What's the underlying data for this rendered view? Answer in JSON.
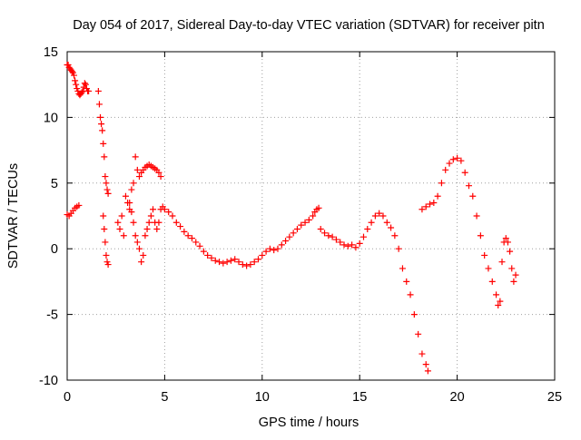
{
  "chart_data": {
    "type": "scatter",
    "title": "Day 054 of 2017, Sidereal Day-to-day VTEC variation (SDTVAR) for receiver pitn",
    "xlabel": "GPS time / hours",
    "ylabel": "SDTVAR / TECUs",
    "xlim": [
      0,
      25
    ],
    "ylim": [
      -10,
      15
    ],
    "x_ticks": [
      0,
      5,
      10,
      15,
      20,
      25
    ],
    "y_ticks": [
      -10,
      -5,
      0,
      5,
      10,
      15
    ],
    "grid": true,
    "marker": "+",
    "marker_color": "#ff0000",
    "series": [
      {
        "name": "SDTVAR",
        "x": [
          0.0,
          0.05,
          0.1,
          0.15,
          0.2,
          0.25,
          0.3,
          0.35,
          0.4,
          0.45,
          0.5,
          0.55,
          0.6,
          0.65,
          0.7,
          0.75,
          0.8,
          0.85,
          0.9,
          0.95,
          1.0,
          1.05,
          1.1,
          0.0,
          0.1,
          0.2,
          0.3,
          0.4,
          0.5,
          0.6,
          1.6,
          1.65,
          1.7,
          1.75,
          1.8,
          1.85,
          1.9,
          1.95,
          2.0,
          2.05,
          2.1,
          1.85,
          1.9,
          1.95,
          2.0,
          2.05,
          2.1,
          2.6,
          2.7,
          2.8,
          2.9,
          3.0,
          3.1,
          3.2,
          3.3,
          3.4,
          3.5,
          3.6,
          3.7,
          3.8,
          3.9,
          4.0,
          4.1,
          4.2,
          4.3,
          4.4,
          4.5,
          4.6,
          4.7,
          4.8,
          3.2,
          3.3,
          3.4,
          3.5,
          3.6,
          3.7,
          3.8,
          3.9,
          4.0,
          4.1,
          4.2,
          4.3,
          4.4,
          4.5,
          4.6,
          4.7,
          4.8,
          4.9,
          5.0,
          5.2,
          5.4,
          5.6,
          5.8,
          6.0,
          6.2,
          6.4,
          6.6,
          6.8,
          7.0,
          7.2,
          7.4,
          7.6,
          7.8,
          8.0,
          8.2,
          8.4,
          8.6,
          8.8,
          9.0,
          9.2,
          9.4,
          9.6,
          9.8,
          10.0,
          10.2,
          10.4,
          10.6,
          10.8,
          11.0,
          11.2,
          11.4,
          11.6,
          11.8,
          12.0,
          12.2,
          12.4,
          12.6,
          12.7,
          12.8,
          12.9,
          13.0,
          13.2,
          13.4,
          13.6,
          13.8,
          14.0,
          14.2,
          14.4,
          14.6,
          14.8,
          15.0,
          15.2,
          15.4,
          15.6,
          15.8,
          16.0,
          16.2,
          16.4,
          16.6,
          16.8,
          17.0,
          17.2,
          17.4,
          17.6,
          17.8,
          18.0,
          18.2,
          18.4,
          18.5,
          18.2,
          18.4,
          18.6,
          18.8,
          19.0,
          19.2,
          19.4,
          19.6,
          19.8,
          20.0,
          20.2,
          20.4,
          20.6,
          20.8,
          21.0,
          21.2,
          21.4,
          21.6,
          21.8,
          22.0,
          22.1,
          22.2,
          22.3,
          22.4,
          22.5,
          22.6,
          22.7,
          22.8,
          22.9,
          23.0
        ],
        "y": [
          14.0,
          14.0,
          13.8,
          13.7,
          13.6,
          13.5,
          13.4,
          13.2,
          12.8,
          12.5,
          12.2,
          12.0,
          11.8,
          11.7,
          11.8,
          11.9,
          12.0,
          12.3,
          12.6,
          12.5,
          12.2,
          12.0,
          12.0,
          2.6,
          2.5,
          2.7,
          2.9,
          3.1,
          3.2,
          3.3,
          12.0,
          11.0,
          10.0,
          9.5,
          9.0,
          8.0,
          7.0,
          5.5,
          5.0,
          4.5,
          4.2,
          2.5,
          1.5,
          0.5,
          -0.5,
          -1.0,
          -1.2,
          2.0,
          1.5,
          2.5,
          1.0,
          4.0,
          3.5,
          3.0,
          4.5,
          5.0,
          7.0,
          6.0,
          5.5,
          5.8,
          6.0,
          6.2,
          6.3,
          6.4,
          6.3,
          6.2,
          6.1,
          6.0,
          5.8,
          5.5,
          3.5,
          2.8,
          2.0,
          1.0,
          0.5,
          0.0,
          -1.0,
          -0.5,
          1.0,
          1.5,
          2.0,
          2.5,
          3.0,
          2.0,
          1.5,
          2.0,
          3.0,
          3.2,
          3.0,
          2.8,
          2.5,
          2.0,
          1.7,
          1.3,
          1.0,
          0.8,
          0.5,
          0.2,
          -0.2,
          -0.5,
          -0.7,
          -0.9,
          -1.0,
          -1.1,
          -1.0,
          -0.9,
          -0.8,
          -1.0,
          -1.2,
          -1.3,
          -1.2,
          -1.0,
          -0.8,
          -0.5,
          -0.2,
          0.0,
          -0.1,
          0.0,
          0.3,
          0.6,
          0.9,
          1.2,
          1.5,
          1.8,
          2.0,
          2.2,
          2.5,
          2.8,
          3.0,
          3.1,
          1.5,
          1.2,
          1.0,
          0.9,
          0.7,
          0.5,
          0.3,
          0.2,
          0.3,
          0.1,
          0.4,
          0.9,
          1.5,
          2.0,
          2.5,
          2.7,
          2.5,
          2.0,
          1.6,
          1.0,
          0.0,
          -1.5,
          -2.5,
          -3.5,
          -5.0,
          -6.5,
          -8.0,
          -8.8,
          -9.3,
          3.0,
          3.2,
          3.4,
          3.5,
          4.0,
          5.0,
          6.0,
          6.5,
          6.8,
          6.9,
          6.7,
          5.8,
          4.8,
          4.0,
          2.5,
          1.0,
          -0.5,
          -1.5,
          -2.5,
          -3.5,
          -4.3,
          -4.0,
          -1.0,
          0.5,
          0.8,
          0.5,
          -0.2,
          -1.5,
          -2.5,
          -2.0
        ]
      }
    ]
  }
}
